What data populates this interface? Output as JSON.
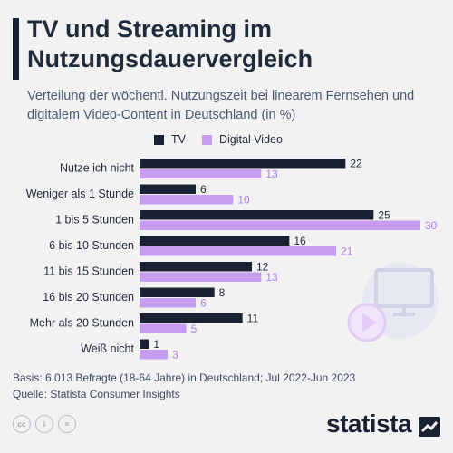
{
  "header": {
    "title": "TV und Streaming im Nutzungsdauervergleich",
    "subtitle": "Verteilung der wöchentl. Nutzungszeit bei linearem Fernsehen und digitalem Video-Content in Deutschland (in %)"
  },
  "colors": {
    "tv": "#1a2133",
    "digital": "#c79df0",
    "background": "#f2f2f2"
  },
  "chart_data": {
    "type": "bar",
    "orientation": "horizontal",
    "categories": [
      "Nutze ich nicht",
      "Weniger als 1 Stunde",
      "1 bis 5 Stunden",
      "6 bis 10 Stunden",
      "11 bis 15 Stunden",
      "16 bis 20 Stunden",
      "Mehr als 20 Stunden",
      "Weiß nicht"
    ],
    "series": [
      {
        "name": "TV",
        "values": [
          22,
          6,
          25,
          16,
          12,
          8,
          11,
          1
        ],
        "color": "#1a2133"
      },
      {
        "name": "Digital Video",
        "values": [
          13,
          10,
          30,
          21,
          13,
          6,
          5,
          3
        ],
        "color": "#c79df0"
      }
    ],
    "xlim": [
      0,
      30
    ],
    "grid": false,
    "legend": "top"
  },
  "footer": {
    "basis": "Basis: 6.013 Befragte (18-64 Jahre) in Deutschland; Jul 2022-Jun 2023",
    "source": "Quelle: Statista Consumer Insights"
  },
  "license_icons": [
    "cc-icon",
    "info-icon",
    "equals-icon"
  ],
  "license_labels": [
    "cc",
    "i",
    "="
  ],
  "brand": {
    "name": "statista"
  }
}
